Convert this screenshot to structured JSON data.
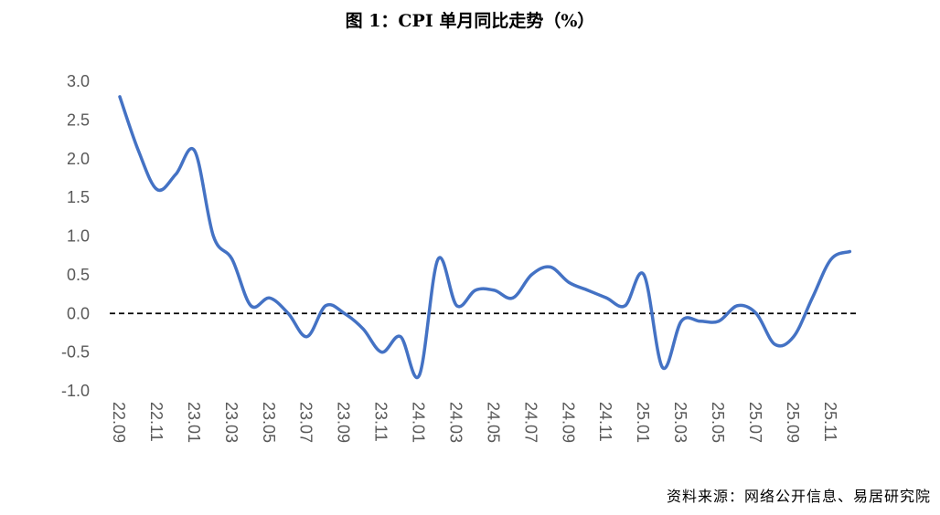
{
  "chart_data": {
    "type": "line",
    "title": "图 1：CPI 单月同比走势（%）",
    "xlabel": "",
    "ylabel": "",
    "ylim": [
      -1.0,
      3.0
    ],
    "yticks": [
      "3.0",
      "2.5",
      "2.0",
      "1.5",
      "1.0",
      "0.5",
      "0.0",
      "-0.5",
      "-1.0"
    ],
    "xtick_labels": [
      "22.09",
      "22.11",
      "23.01",
      "23.03",
      "23.05",
      "23.07",
      "23.09",
      "23.11",
      "24.01",
      "24.03",
      "24.05",
      "24.07",
      "24.09",
      "24.11",
      "25.01",
      "25.03",
      "25.05",
      "25.07",
      "25.09",
      "25.11"
    ],
    "x": [
      "22.09",
      "22.10",
      "22.11",
      "22.12",
      "23.01",
      "23.02",
      "23.03",
      "23.04",
      "23.05",
      "23.06",
      "23.07",
      "23.08",
      "23.09",
      "23.10",
      "23.11",
      "23.12",
      "24.01",
      "24.02",
      "24.03",
      "24.04",
      "24.05",
      "24.06",
      "24.07",
      "24.08",
      "24.09",
      "24.10",
      "24.11",
      "24.12",
      "25.01",
      "25.02",
      "25.03",
      "25.04",
      "25.05",
      "25.06",
      "25.07",
      "25.08",
      "25.09",
      "25.10",
      "25.11",
      "25.12"
    ],
    "series": [
      {
        "values": [
          2.8,
          2.1,
          1.6,
          1.8,
          2.1,
          1.0,
          0.7,
          0.1,
          0.2,
          0.0,
          -0.3,
          0.1,
          0.0,
          -0.2,
          -0.5,
          -0.3,
          -0.8,
          0.7,
          0.1,
          0.3,
          0.3,
          0.2,
          0.5,
          0.6,
          0.4,
          0.3,
          0.2,
          0.1,
          0.5,
          -0.7,
          -0.1,
          -0.1,
          -0.1,
          0.1,
          0.0,
          -0.4,
          -0.3,
          0.2,
          0.7,
          0.8
        ],
        "color": "#4472C4"
      }
    ],
    "reference_line": {
      "y": 0,
      "style": "dashed",
      "color": "#000000"
    },
    "grid": false,
    "legend": "none"
  },
  "source": "资料来源：网络公开信息、易居研究院"
}
